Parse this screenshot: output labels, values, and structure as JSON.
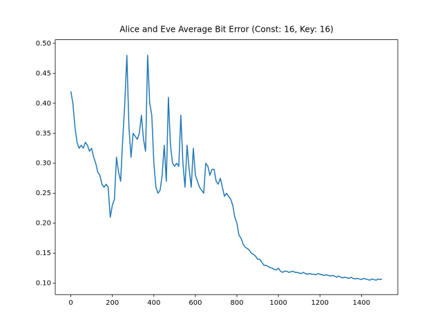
{
  "chart_data": {
    "type": "line",
    "title": "Alice and Eve Average Bit Error (Const: 16, Key: 16)",
    "x": [
      0,
      10,
      20,
      30,
      40,
      50,
      60,
      70,
      80,
      90,
      100,
      110,
      120,
      130,
      140,
      150,
      160,
      170,
      180,
      190,
      200,
      210,
      220,
      230,
      240,
      250,
      260,
      270,
      280,
      290,
      300,
      310,
      320,
      330,
      340,
      350,
      360,
      370,
      380,
      390,
      400,
      410,
      420,
      430,
      440,
      450,
      460,
      470,
      480,
      490,
      500,
      510,
      520,
      530,
      540,
      550,
      560,
      570,
      580,
      590,
      600,
      610,
      620,
      630,
      640,
      650,
      660,
      670,
      680,
      690,
      700,
      710,
      720,
      730,
      740,
      750,
      760,
      770,
      780,
      790,
      800,
      810,
      820,
      830,
      840,
      850,
      860,
      870,
      880,
      890,
      900,
      910,
      920,
      930,
      940,
      950,
      960,
      970,
      980,
      990,
      1000,
      1010,
      1020,
      1030,
      1040,
      1050,
      1060,
      1070,
      1080,
      1090,
      1100,
      1110,
      1120,
      1130,
      1140,
      1150,
      1160,
      1170,
      1180,
      1190,
      1200,
      1210,
      1220,
      1230,
      1240,
      1250,
      1260,
      1270,
      1280,
      1290,
      1300,
      1310,
      1320,
      1330,
      1340,
      1350,
      1360,
      1370,
      1380,
      1390,
      1400,
      1410,
      1420,
      1430,
      1440,
      1450,
      1460,
      1470,
      1480,
      1490,
      1499
    ],
    "series": [
      {
        "color": "#1f77b4",
        "values": [
          0.42,
          0.4,
          0.36,
          0.335,
          0.325,
          0.33,
          0.325,
          0.335,
          0.33,
          0.32,
          0.325,
          0.31,
          0.3,
          0.285,
          0.28,
          0.265,
          0.26,
          0.265,
          0.26,
          0.21,
          0.23,
          0.24,
          0.31,
          0.285,
          0.27,
          0.34,
          0.4,
          0.48,
          0.36,
          0.31,
          0.35,
          0.345,
          0.34,
          0.35,
          0.38,
          0.34,
          0.32,
          0.48,
          0.4,
          0.38,
          0.3,
          0.26,
          0.25,
          0.255,
          0.28,
          0.33,
          0.27,
          0.41,
          0.33,
          0.3,
          0.295,
          0.3,
          0.295,
          0.38,
          0.3,
          0.26,
          0.33,
          0.29,
          0.26,
          0.325,
          0.28,
          0.27,
          0.26,
          0.255,
          0.25,
          0.3,
          0.295,
          0.28,
          0.29,
          0.29,
          0.27,
          0.265,
          0.275,
          0.26,
          0.245,
          0.25,
          0.245,
          0.24,
          0.23,
          0.21,
          0.2,
          0.18,
          0.175,
          0.165,
          0.16,
          0.158,
          0.155,
          0.15,
          0.148,
          0.145,
          0.14,
          0.14,
          0.135,
          0.13,
          0.13,
          0.128,
          0.126,
          0.125,
          0.123,
          0.122,
          0.125,
          0.12,
          0.118,
          0.12,
          0.12,
          0.118,
          0.119,
          0.12,
          0.118,
          0.118,
          0.117,
          0.116,
          0.118,
          0.116,
          0.115,
          0.116,
          0.115,
          0.115,
          0.114,
          0.116,
          0.115,
          0.114,
          0.113,
          0.114,
          0.113,
          0.112,
          0.113,
          0.112,
          0.11,
          0.112,
          0.11,
          0.109,
          0.11,
          0.109,
          0.108,
          0.11,
          0.108,
          0.107,
          0.108,
          0.107,
          0.106,
          0.108,
          0.107,
          0.106,
          0.105,
          0.107,
          0.106,
          0.105,
          0.107,
          0.106,
          0.107
        ]
      }
    ],
    "xlim": [
      -75,
      1575
    ],
    "ylim": [
      0.081,
      0.506
    ],
    "xticks": [
      0,
      200,
      400,
      600,
      800,
      1000,
      1200,
      1400
    ],
    "yticks": [
      {
        "value": 0.1,
        "label": "0.10"
      },
      {
        "value": 0.15,
        "label": "0.15"
      },
      {
        "value": 0.2,
        "label": "0.20"
      },
      {
        "value": 0.25,
        "label": "0.25"
      },
      {
        "value": 0.3,
        "label": "0.30"
      },
      {
        "value": 0.35,
        "label": "0.35"
      },
      {
        "value": 0.4,
        "label": "0.40"
      },
      {
        "value": 0.45,
        "label": "0.45"
      },
      {
        "value": 0.5,
        "label": "0.50"
      }
    ]
  }
}
